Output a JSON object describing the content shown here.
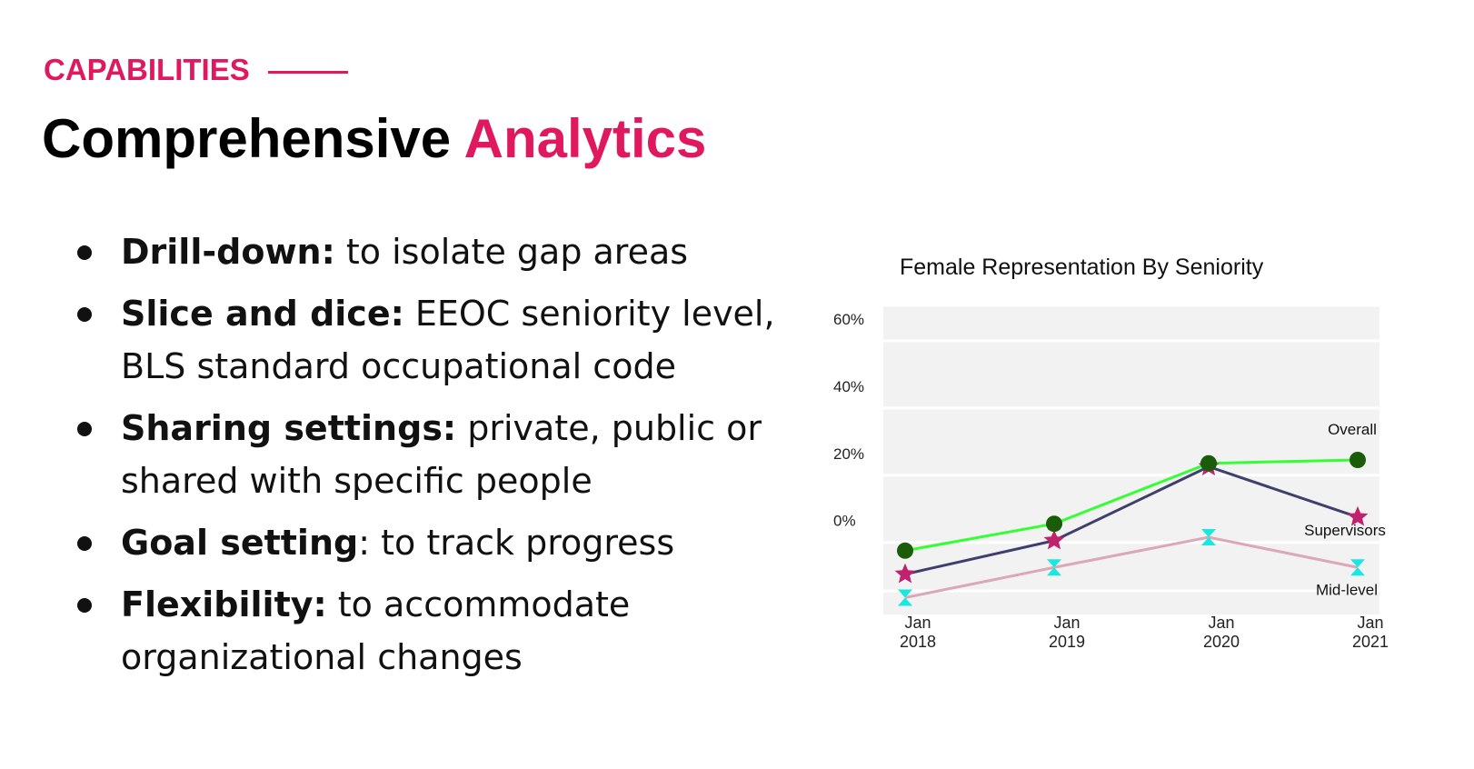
{
  "header": {
    "eyebrow": "CAPABILITIES",
    "title_main": "Comprehensive",
    "title_accent": "Analytics"
  },
  "bullets": [
    {
      "bold": "Drill-down:",
      "rest": " to isolate gap areas"
    },
    {
      "bold": "Slice and dice:",
      "rest": " EEOC seniority level, BLS standard occupational code"
    },
    {
      "bold": "Sharing settings:",
      "rest": " private, public or shared with specific people"
    },
    {
      "bold": "Goal setting",
      "rest": ": to track progress"
    },
    {
      "bold": "Flexibility:",
      "rest": " to accommodate organizational changes"
    }
  ],
  "colors": {
    "accent": "#e0185e",
    "plot_bg": "#f2f2f2"
  },
  "chart_data": {
    "type": "line",
    "title": "Female Representation By Seniority",
    "categories": [
      "Jan 2018",
      "Jan 2019",
      "Jan 2020",
      "Jan 2021"
    ],
    "category_lines": [
      [
        "Jan",
        "2018"
      ],
      [
        "Jan",
        "2019"
      ],
      [
        "Jan",
        "2020"
      ],
      [
        "Jan",
        "2021"
      ]
    ],
    "yticks": [
      0,
      20,
      40,
      60
    ],
    "ytick_labels": [
      "0%",
      "20%",
      "40%",
      "60%"
    ],
    "ylim": [
      -22,
      70
    ],
    "grid": true,
    "series": [
      {
        "name": "Overall",
        "values": [
          -3,
          5,
          23,
          24
        ],
        "color": "#33ff33",
        "marker": "circle",
        "marker_color": "#1a5c0a"
      },
      {
        "name": "Supervisors",
        "values": [
          -10,
          0,
          22,
          7
        ],
        "color": "#3f3f6e",
        "marker": "star",
        "marker_color": "#c0226e"
      },
      {
        "name": "Mid-level",
        "values": [
          -17,
          -8,
          1,
          -8
        ],
        "color": "#dca8b8",
        "marker": "hourglass",
        "marker_color": "#19e8e0"
      }
    ]
  }
}
